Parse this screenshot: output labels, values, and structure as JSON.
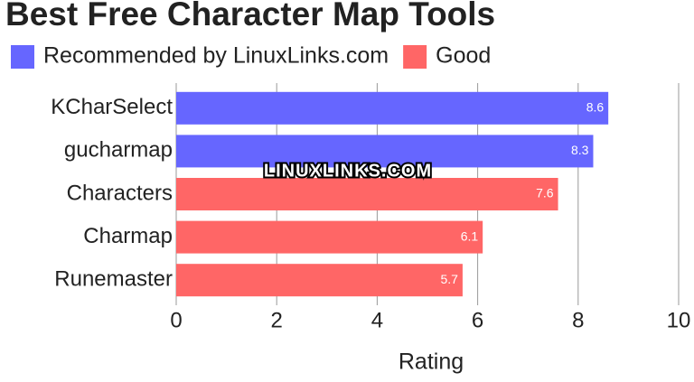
{
  "chart_data": {
    "type": "bar",
    "orientation": "horizontal",
    "title": "Best Free Character Map Tools",
    "x_label": "Rating",
    "watermark": "LINUXLINKS.COM",
    "categories": [
      "KCharSelect",
      "gucharmap",
      "Characters",
      "Charmap",
      "Runemaster"
    ],
    "series": [
      {
        "name": "Recommended by LinuxLinks.com",
        "color": "#6666ff",
        "values": [
          8.6,
          8.3,
          null,
          null,
          null
        ]
      },
      {
        "name": "Good",
        "color": "#ff6666",
        "values": [
          null,
          null,
          7.6,
          6.1,
          5.7
        ]
      }
    ],
    "xlim": [
      0,
      10
    ],
    "xticks": [
      0,
      2,
      4,
      6,
      8,
      10
    ],
    "grid": true
  }
}
